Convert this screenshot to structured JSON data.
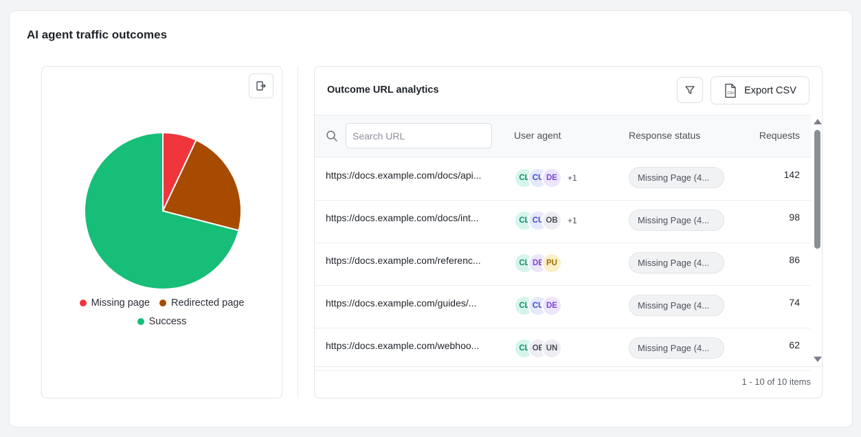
{
  "card": {
    "title": "AI agent traffic outcomes"
  },
  "chart_data": {
    "type": "pie",
    "slices": [
      {
        "label": "Missing page",
        "value": 7,
        "color": "#f0353d"
      },
      {
        "label": "Redirected page",
        "value": 22,
        "color": "#a64b00"
      },
      {
        "label": "Success",
        "value": 71,
        "color": "#16be78"
      }
    ],
    "legend": [
      "Missing page",
      "Redirected page",
      "Success"
    ]
  },
  "table": {
    "title": "Outcome URL analytics",
    "export_label": "Export CSV",
    "csv_icon_text": "CSV",
    "search": {
      "placeholder": "Search URL",
      "value": ""
    },
    "headers": {
      "user_agent": "User agent",
      "response_status": "Response status",
      "requests": "Requests"
    },
    "rows": [
      {
        "url": "https://docs.example.com/docs/api...",
        "agents": [
          "CL",
          "CU",
          "DE"
        ],
        "more": "+1",
        "status": "Missing Page (4...",
        "requests": "142"
      },
      {
        "url": "https://docs.example.com/docs/int...",
        "agents": [
          "CL",
          "CU",
          "OB"
        ],
        "more": "+1",
        "status": "Missing Page (4...",
        "requests": "98"
      },
      {
        "url": "https://docs.example.com/referenc...",
        "agents": [
          "CL",
          "DE",
          "PU"
        ],
        "more": "",
        "status": "Missing Page (4...",
        "requests": "86"
      },
      {
        "url": "https://docs.example.com/guides/...",
        "agents": [
          "CL",
          "CU",
          "DE"
        ],
        "more": "",
        "status": "Missing Page (4...",
        "requests": "74"
      },
      {
        "url": "https://docs.example.com/webhoo...",
        "agents": [
          "CL",
          "OE",
          "UN"
        ],
        "more": "",
        "status": "Missing Page (4...",
        "requests": "62"
      }
    ],
    "pagination": "1 - 10 of 10 items"
  },
  "agent_colors": {
    "CL": {
      "bg": "#d5f5ec",
      "fg": "#0f8f68"
    },
    "CU": {
      "bg": "#e6e9fb",
      "fg": "#3b4bc4"
    },
    "DE": {
      "bg": "#ece6fb",
      "fg": "#7b45d6"
    },
    "OB": {
      "bg": "#eceef1",
      "fg": "#4b5058"
    },
    "OE": {
      "bg": "#eceef1",
      "fg": "#4b5058"
    },
    "UN": {
      "bg": "#eceef1",
      "fg": "#4b5058"
    },
    "PU": {
      "bg": "#fbf0c8",
      "fg": "#a16a00"
    }
  }
}
